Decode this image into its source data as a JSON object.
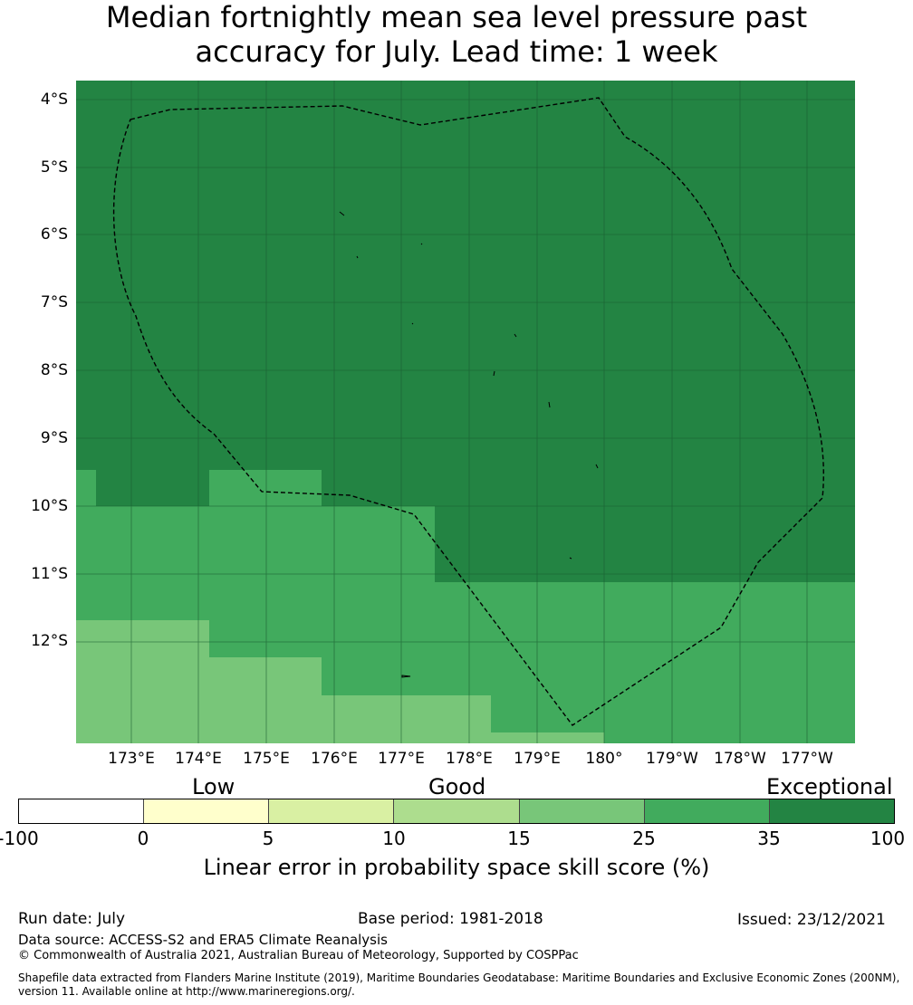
{
  "title_line1": "Median fortnightly mean sea level pressure past",
  "title_line2": "accuracy for July. Lead time: 1 week",
  "lat_labels": [
    "4°S",
    "5°S",
    "6°S",
    "7°S",
    "8°S",
    "9°S",
    "10°S",
    "11°S",
    "12°S"
  ],
  "lon_labels": [
    "173°E",
    "174°E",
    "175°E",
    "176°E",
    "177°E",
    "178°E",
    "179°E",
    "180°",
    "179°W",
    "178°W",
    "177°W"
  ],
  "categories": [
    "Low",
    "Good",
    "Exceptional"
  ],
  "colorbar": {
    "ticks": [
      "-100",
      "0",
      "5",
      "10",
      "15",
      "25",
      "35",
      "100"
    ],
    "colors": [
      "#ffffff",
      "#ffffcc",
      "#d9f0a3",
      "#addd8e",
      "#78c679",
      "#41ab5d",
      "#238443"
    ],
    "title": "Linear error in probability space skill score (%)"
  },
  "colors": {
    "exceptional": "#238443",
    "very_good": "#41ab5d",
    "good": "#78c679",
    "gridline": "#1a5c30",
    "boundary": "#000000"
  },
  "footer": {
    "run_date": "Run date: July",
    "base_period": "Base period: 1981-2018",
    "issued": "Issued: 23/12/2021",
    "data_source": "Data source: ACCESS-S2 and ERA5 Climate Reanalysis",
    "copyright": "© Commonwealth of Australia 2021, Australian Bureau of Meteorology, Supported by COSPPac",
    "shapefile_line1": "Shapefile data extracted from Flanders Marine Institute (2019), Maritime Boundaries Geodatabase: Maritime Boundaries and Exclusive Economic Zones (200NM),",
    "shapefile_line2": "version 11. Available online at http://www.marineregions.org/."
  }
}
